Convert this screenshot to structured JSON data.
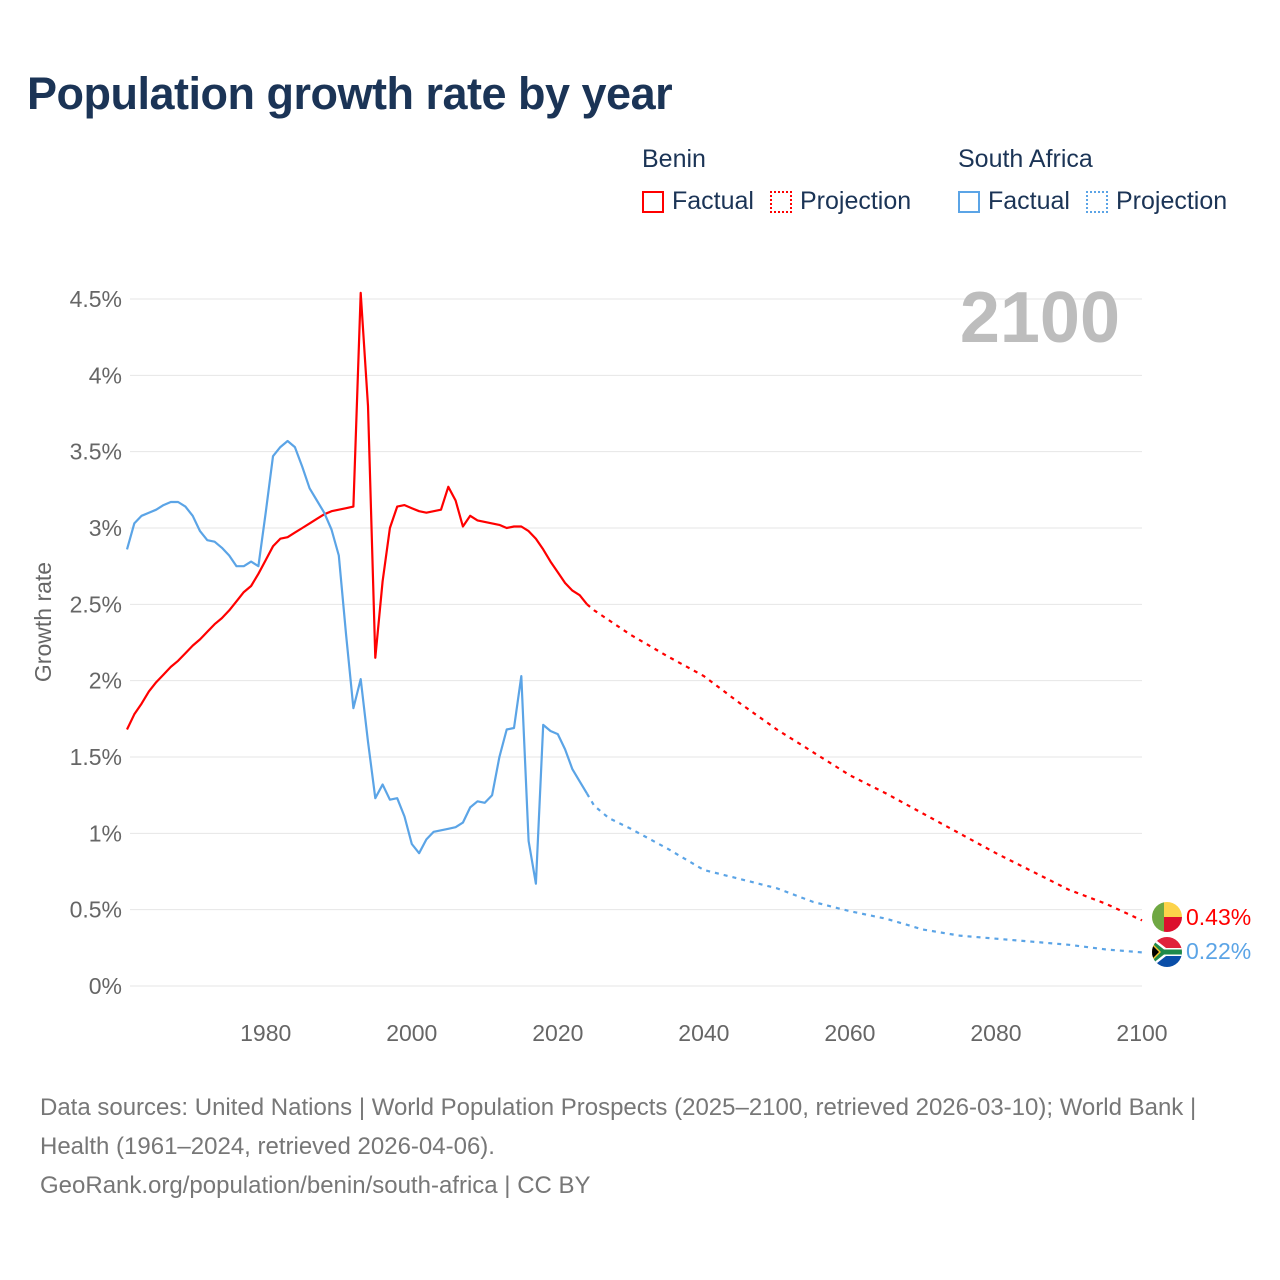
{
  "title": "Population growth rate by year",
  "legend": {
    "groups": [
      {
        "country": "Benin",
        "factual": "Factual",
        "projection": "Projection",
        "color": "#ff0000"
      },
      {
        "country": "South Africa",
        "factual": "Factual",
        "projection": "Projection",
        "color": "#5ba4e6"
      }
    ]
  },
  "year_label": "2100",
  "end_labels": {
    "benin": "0.43%",
    "south_africa": "0.22%"
  },
  "source": {
    "line1": "Data sources: United Nations | World Population Prospects (2025–2100, retrieved 2026-03-10); World Bank | Health (1961–2024, retrieved 2026-04-06).",
    "line2": "GeoRank.org/population/benin/south-africa | CC BY"
  },
  "chart_data": {
    "type": "line",
    "title": "Population growth rate by year",
    "xlabel": "",
    "ylabel": "Growth rate",
    "xlim": [
      1961,
      2100
    ],
    "ylim": [
      0,
      4.5
    ],
    "x_ticks": [
      1980,
      2000,
      2020,
      2040,
      2060,
      2080,
      2100
    ],
    "y_ticks": [
      {
        "v": 0,
        "label": "0%"
      },
      {
        "v": 0.5,
        "label": "0.5%"
      },
      {
        "v": 1,
        "label": "1%"
      },
      {
        "v": 1.5,
        "label": "1.5%"
      },
      {
        "v": 2,
        "label": "2%"
      },
      {
        "v": 2.5,
        "label": "2.5%"
      },
      {
        "v": 3,
        "label": "3%"
      },
      {
        "v": 3.5,
        "label": "3.5%"
      },
      {
        "v": 4,
        "label": "4%"
      },
      {
        "v": 4.5,
        "label": "4.5%"
      }
    ],
    "grid": true,
    "legend_position": "top-right",
    "series": [
      {
        "name": "Benin",
        "kind": "Factual",
        "color": "#ff0000",
        "dash": false,
        "x": [
          1961,
          1962,
          1963,
          1964,
          1965,
          1966,
          1967,
          1968,
          1969,
          1970,
          1971,
          1972,
          1973,
          1974,
          1975,
          1976,
          1977,
          1978,
          1979,
          1980,
          1981,
          1982,
          1983,
          1984,
          1985,
          1986,
          1987,
          1988,
          1989,
          1990,
          1991,
          1992,
          1993,
          1994,
          1995,
          1996,
          1997,
          1998,
          1999,
          2000,
          2001,
          2002,
          2003,
          2004,
          2005,
          2006,
          2007,
          2008,
          2009,
          2010,
          2011,
          2012,
          2013,
          2014,
          2015,
          2016,
          2017,
          2018,
          2019,
          2020,
          2021,
          2022,
          2023,
          2024
        ],
        "y": [
          1.68,
          1.78,
          1.85,
          1.93,
          1.99,
          2.04,
          2.09,
          2.13,
          2.18,
          2.23,
          2.27,
          2.32,
          2.37,
          2.41,
          2.46,
          2.52,
          2.58,
          2.62,
          2.7,
          2.79,
          2.88,
          2.93,
          2.94,
          2.97,
          3.0,
          3.03,
          3.06,
          3.09,
          3.11,
          3.12,
          3.13,
          3.14,
          4.54,
          3.8,
          2.15,
          2.65,
          3.0,
          3.14,
          3.15,
          3.13,
          3.11,
          3.1,
          3.11,
          3.12,
          3.27,
          3.18,
          3.01,
          3.08,
          3.05,
          3.04,
          3.03,
          3.02,
          3.0,
          3.01,
          3.01,
          2.98,
          2.93,
          2.86,
          2.78,
          2.71,
          2.64,
          2.59,
          2.56,
          2.5
        ]
      },
      {
        "name": "Benin",
        "kind": "Projection",
        "color": "#ff0000",
        "dash": true,
        "x": [
          2024,
          2025,
          2030,
          2035,
          2040,
          2045,
          2050,
          2055,
          2060,
          2065,
          2070,
          2075,
          2080,
          2085,
          2090,
          2095,
          2100
        ],
        "y": [
          2.5,
          2.46,
          2.3,
          2.16,
          2.03,
          1.85,
          1.68,
          1.53,
          1.38,
          1.26,
          1.13,
          1.0,
          0.87,
          0.75,
          0.63,
          0.54,
          0.43
        ]
      },
      {
        "name": "South Africa",
        "kind": "Factual",
        "color": "#5ba4e6",
        "dash": false,
        "x": [
          1961,
          1962,
          1963,
          1964,
          1965,
          1966,
          1967,
          1968,
          1969,
          1970,
          1971,
          1972,
          1973,
          1974,
          1975,
          1976,
          1977,
          1978,
          1979,
          1980,
          1981,
          1982,
          1983,
          1984,
          1985,
          1986,
          1987,
          1988,
          1989,
          1990,
          1991,
          1992,
          1993,
          1994,
          1995,
          1996,
          1997,
          1998,
          1999,
          2000,
          2001,
          2002,
          2003,
          2004,
          2005,
          2006,
          2007,
          2008,
          2009,
          2010,
          2011,
          2012,
          2013,
          2014,
          2015,
          2016,
          2017,
          2018,
          2019,
          2020,
          2021,
          2022,
          2023,
          2024
        ],
        "y": [
          2.86,
          3.03,
          3.08,
          3.1,
          3.12,
          3.15,
          3.17,
          3.17,
          3.14,
          3.08,
          2.98,
          2.92,
          2.91,
          2.87,
          2.82,
          2.75,
          2.75,
          2.78,
          2.75,
          3.1,
          3.47,
          3.53,
          3.57,
          3.53,
          3.4,
          3.26,
          3.18,
          3.1,
          2.99,
          2.82,
          2.3,
          1.82,
          2.01,
          1.6,
          1.23,
          1.32,
          1.22,
          1.23,
          1.11,
          0.93,
          0.87,
          0.96,
          1.01,
          1.02,
          1.03,
          1.04,
          1.07,
          1.17,
          1.21,
          1.2,
          1.25,
          1.5,
          1.68,
          1.69,
          2.03,
          0.95,
          0.67,
          1.71,
          1.67,
          1.65,
          1.55,
          1.42,
          1.34,
          1.26
        ]
      },
      {
        "name": "South Africa",
        "kind": "Projection",
        "color": "#5ba4e6",
        "dash": true,
        "x": [
          2024,
          2025,
          2027,
          2030,
          2035,
          2040,
          2045,
          2050,
          2055,
          2060,
          2065,
          2070,
          2075,
          2080,
          2085,
          2090,
          2095,
          2100
        ],
        "y": [
          1.26,
          1.18,
          1.1,
          1.03,
          0.9,
          0.76,
          0.7,
          0.64,
          0.55,
          0.49,
          0.44,
          0.37,
          0.33,
          0.31,
          0.29,
          0.27,
          0.24,
          0.22
        ]
      }
    ]
  }
}
